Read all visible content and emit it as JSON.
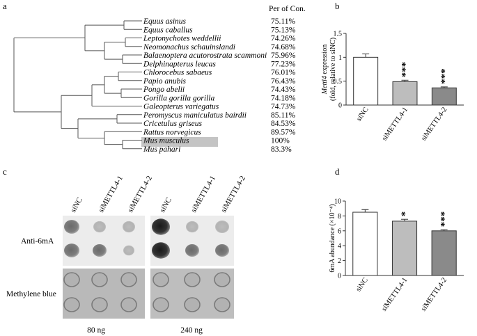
{
  "panels": {
    "a": "a",
    "b": "b",
    "c": "c",
    "d": "d"
  },
  "tree": {
    "header": "Per of Con.",
    "species": [
      {
        "name": "Equus asinus",
        "pct": "75.11%"
      },
      {
        "name": "Equus caballus",
        "pct": "75.13%"
      },
      {
        "name": "Leptonychotes weddellii",
        "pct": "74.26%"
      },
      {
        "name": "Neomonachus schauinslandi",
        "pct": "74.68%"
      },
      {
        "name": "Balaenoptera acutorostrata scammoni",
        "pct": "75.96%"
      },
      {
        "name": "Delphinapterus leucas",
        "pct": "77.23%"
      },
      {
        "name": "Chlorocebus sabaeus",
        "pct": "76.01%"
      },
      {
        "name": "Papio anubis",
        "pct": "76.43%"
      },
      {
        "name": "Pongo abelii",
        "pct": "74.43%"
      },
      {
        "name": "Gorilla gorilla gorilla",
        "pct": "74.18%"
      },
      {
        "name": "Galeopterus variegatus",
        "pct": "74.73%"
      },
      {
        "name": "Peromyscus maniculatus bairdii",
        "pct": "85.11%"
      },
      {
        "name": "Cricetulus griseus",
        "pct": "84.53%"
      },
      {
        "name": "Rattus norvegicus",
        "pct": "89.57%"
      },
      {
        "name": "Mus musculus",
        "pct": "100%"
      },
      {
        "name": "Mus pahari",
        "pct": "83.3%"
      }
    ],
    "highlight_index": 14
  },
  "blot": {
    "columns": [
      "siNC",
      "siMETTL4-1",
      "siMETTL4-2"
    ],
    "row_labels": [
      "Anti-6mA",
      "Methylene blue"
    ],
    "amounts": [
      "80 ng",
      "240 ng"
    ]
  },
  "chart_data": [
    {
      "type": "bar",
      "panel": "b",
      "categories": [
        "siNC",
        "siMETTL4-1",
        "siMETTL4-2"
      ],
      "values": [
        1.0,
        0.49,
        0.36
      ],
      "errors": [
        0.07,
        0.03,
        0.02
      ],
      "significance": [
        "",
        "***",
        "***"
      ],
      "colors": [
        "#ffffff",
        "#bdbdbd",
        "#8a8a8a"
      ],
      "ylabel_italic": "Mettl4",
      "ylabel_rest": " expression",
      "ylabel2": "(fold, relative to siNC)",
      "ylim": [
        0,
        1.5
      ],
      "yticks": [
        0,
        0.5,
        1,
        1.5
      ],
      "ytick_labels": [
        "0",
        "0.5",
        "1",
        "1.5"
      ]
    },
    {
      "type": "bar",
      "panel": "d",
      "categories": [
        "siNC",
        "siMETTL4-1",
        "siMETTL4-2"
      ],
      "values": [
        8.5,
        7.3,
        6.0
      ],
      "errors": [
        0.35,
        0.25,
        0.15
      ],
      "significance": [
        "",
        "*",
        "***"
      ],
      "colors": [
        "#ffffff",
        "#bdbdbd",
        "#8a8a8a"
      ],
      "ylabel": "6mA abundance (×10⁻⁴)",
      "ylim": [
        0,
        10
      ],
      "yticks": [
        0,
        2,
        4,
        6,
        8,
        10
      ],
      "ytick_labels": [
        "0",
        "2",
        "4",
        "6",
        "8",
        "10"
      ]
    }
  ]
}
